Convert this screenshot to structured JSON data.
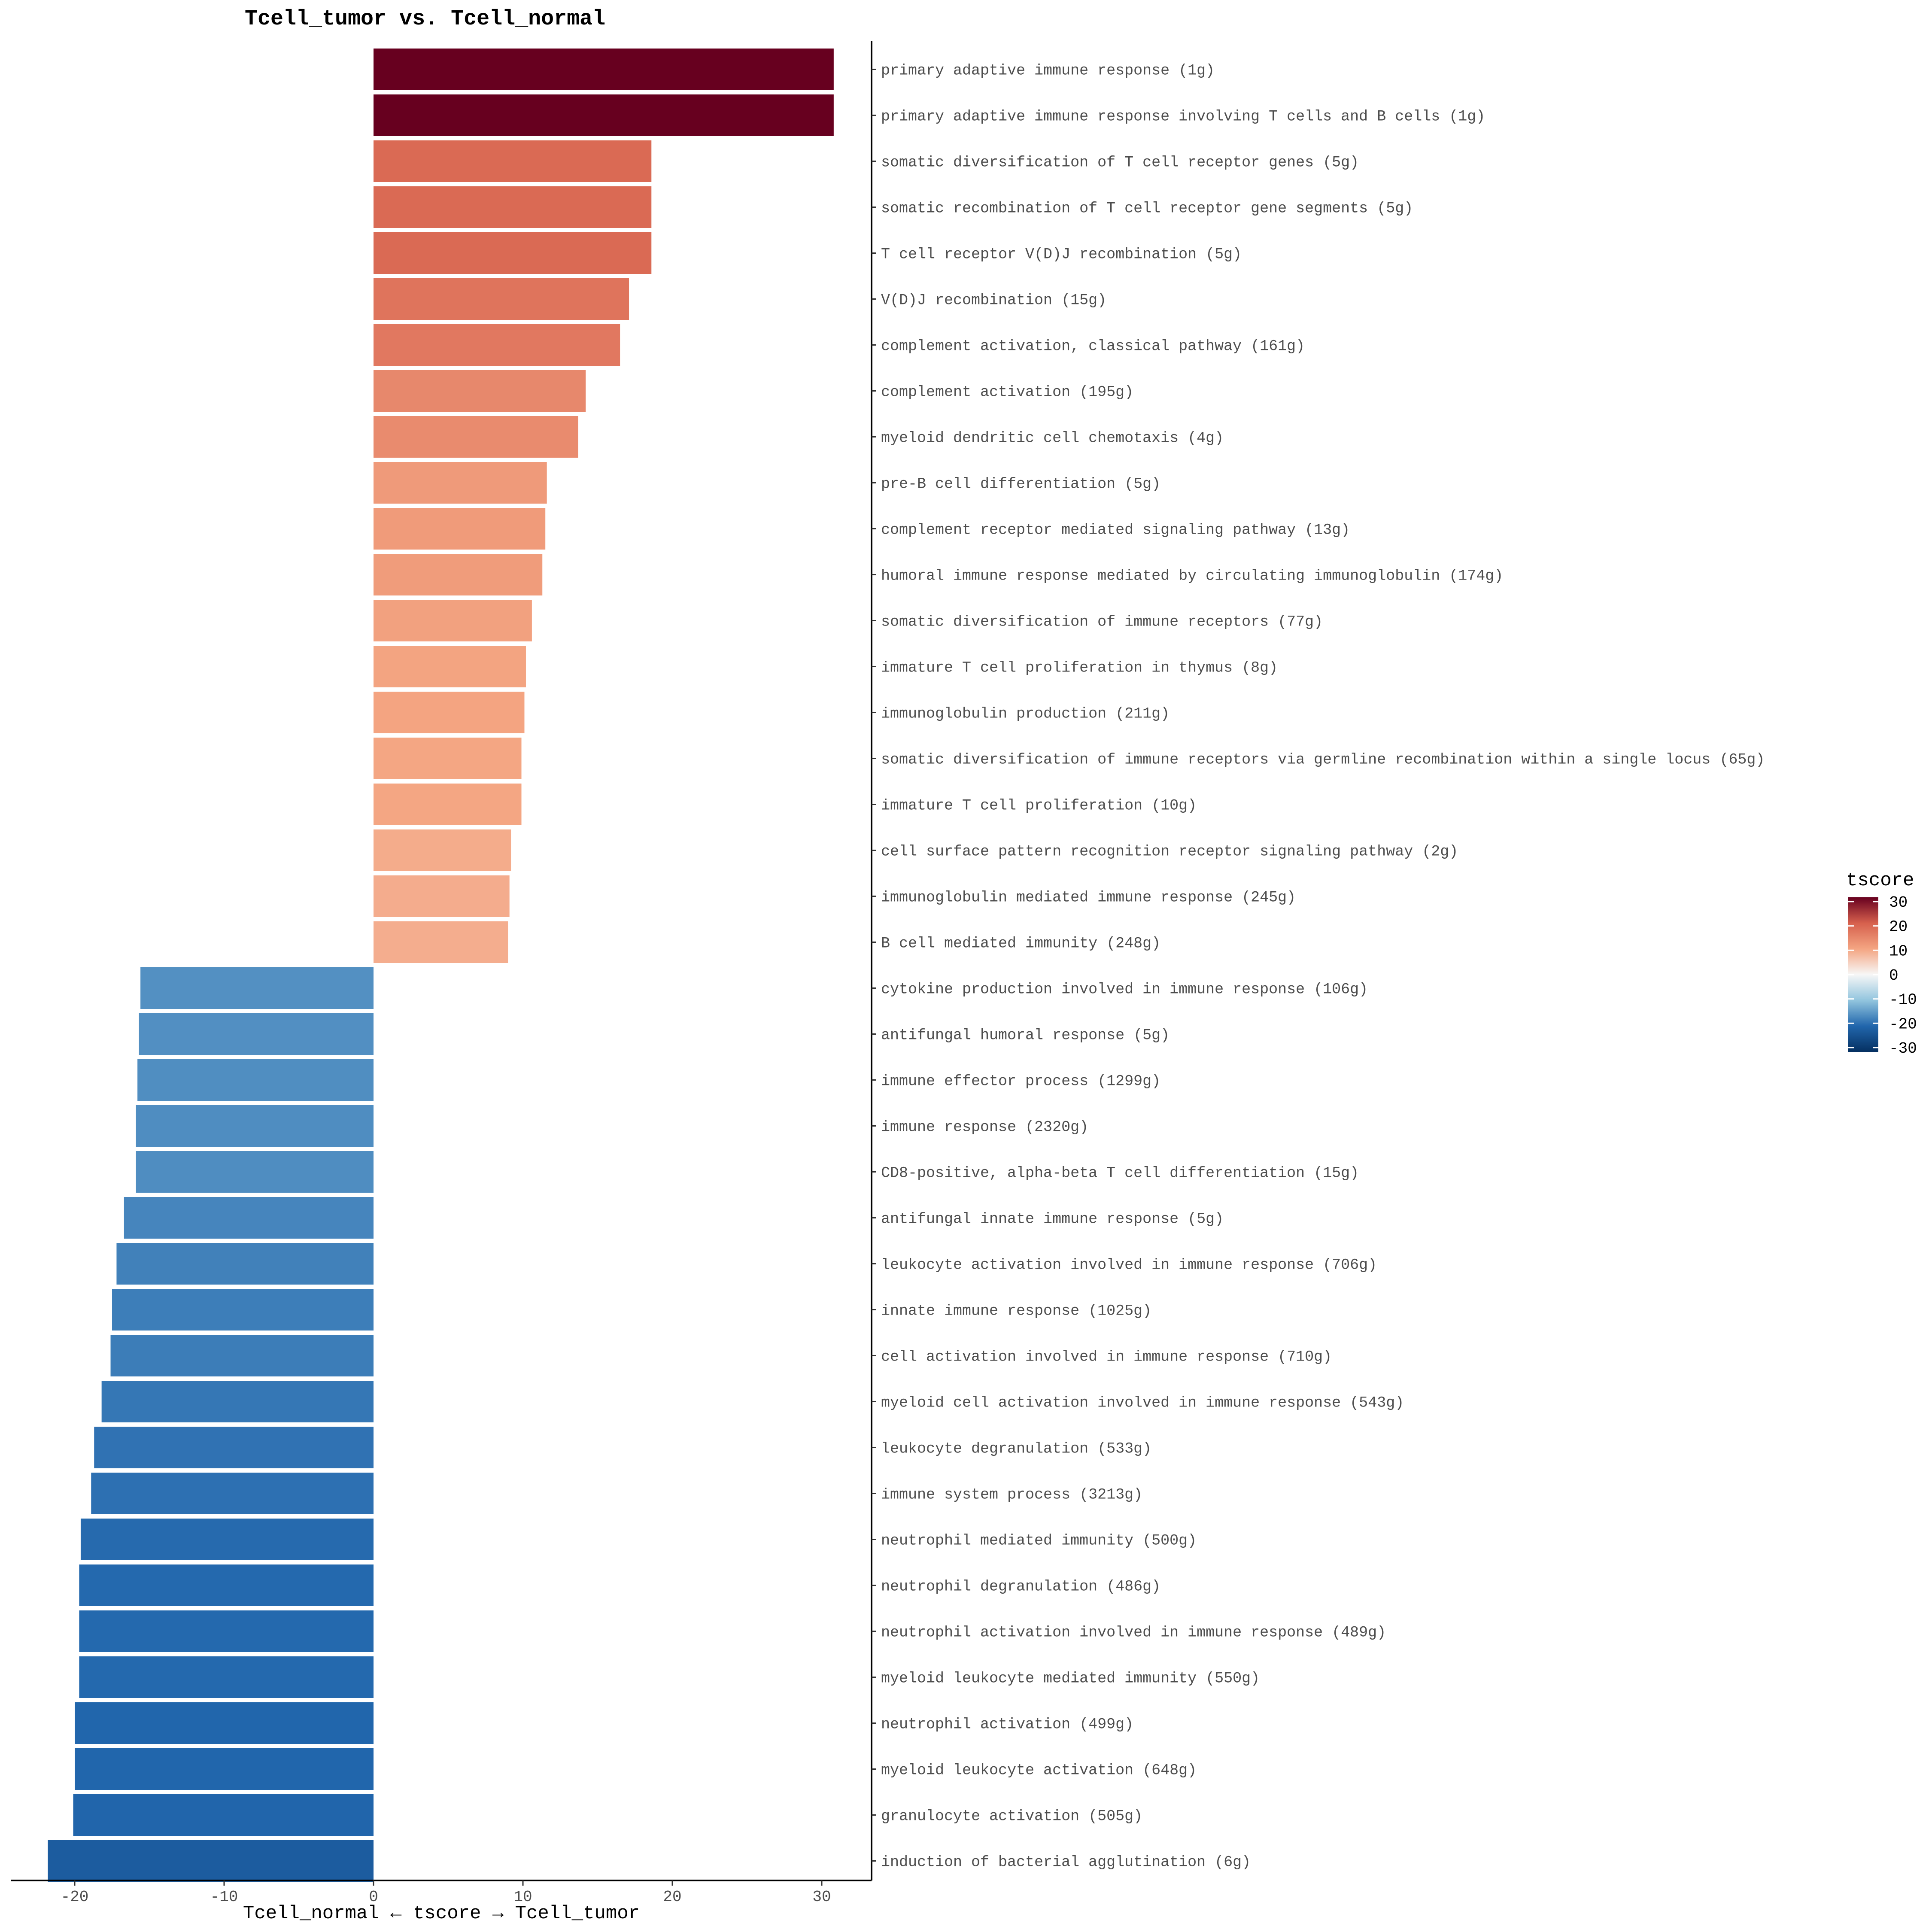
{
  "chart_data": {
    "type": "bar",
    "orientation": "horizontal",
    "title": "Tcell_tumor vs. Tcell_normal",
    "xlabel": "Tcell_normal ← tscore → Tcell_tumor",
    "ylabel": "",
    "xlim": [
      -22.5,
      33.2
    ],
    "x_ticks": [
      -20,
      -10,
      0,
      10,
      20,
      30
    ],
    "x_tick_labels": [
      "-20",
      "-10",
      "0",
      "10",
      "20",
      "30"
    ],
    "grid": false,
    "legend": {
      "title": "tscore",
      "placement": "right",
      "range": [
        -30,
        30
      ],
      "ticks": [
        30,
        20,
        10,
        0,
        -10,
        -20,
        -30
      ],
      "tick_labels": [
        "30",
        "20",
        "10",
        "0",
        "-10",
        "-20",
        "-30"
      ]
    },
    "categories": [
      "primary adaptive immune response (1g)",
      "primary adaptive immune response involving T cells and B cells (1g)",
      "somatic diversification of T cell receptor genes (5g)",
      "somatic recombination of T cell receptor gene segments (5g)",
      "T cell receptor V(D)J recombination (5g)",
      "V(D)J recombination (15g)",
      "complement activation, classical pathway (161g)",
      "complement activation (195g)",
      "myeloid dendritic cell chemotaxis (4g)",
      "pre-B cell differentiation (5g)",
      "complement receptor mediated signaling pathway (13g)",
      "humoral immune response mediated by circulating immunoglobulin (174g)",
      "somatic diversification of immune receptors (77g)",
      "immature T cell proliferation in thymus (8g)",
      "immunoglobulin production (211g)",
      "somatic diversification of immune receptors via germline recombination within a single locus (65g)",
      "immature T cell proliferation (10g)",
      "cell surface pattern recognition receptor signaling pathway (2g)",
      "immunoglobulin mediated immune response (245g)",
      "B cell mediated immunity (248g)",
      "cytokine production involved in immune response (106g)",
      "antifungal humoral response (5g)",
      "immune effector process (1299g)",
      "immune response (2320g)",
      "CD8-positive, alpha-beta T cell differentiation (15g)",
      "antifungal innate immune response (5g)",
      "leukocyte activation involved in immune response (706g)",
      "innate immune response (1025g)",
      "cell activation involved in immune response (710g)",
      "myeloid cell activation involved in immune response (543g)",
      "leukocyte degranulation (533g)",
      "immune system process (3213g)",
      "neutrophil mediated immunity (500g)",
      "neutrophil degranulation (486g)",
      "neutrophil activation involved in immune response (489g)",
      "myeloid leukocyte mediated immunity (550g)",
      "neutrophil activation (499g)",
      "myeloid leukocyte activation (648g)",
      "granulocyte activation (505g)",
      "induction of bacterial agglutination (6g)"
    ],
    "values": [
      30.8,
      30.8,
      18.6,
      18.6,
      18.6,
      17.1,
      16.5,
      14.2,
      13.7,
      11.6,
      11.5,
      11.3,
      10.6,
      10.2,
      10.1,
      9.9,
      9.9,
      9.2,
      9.1,
      9.0,
      -15.6,
      -15.7,
      -15.8,
      -15.9,
      -15.9,
      -16.7,
      -17.2,
      -17.5,
      -17.6,
      -18.2,
      -18.7,
      -18.9,
      -19.6,
      -19.7,
      -19.7,
      -19.7,
      -20.0,
      -20.0,
      -20.1,
      -21.8
    ],
    "color_scale": {
      "name": "RdBu",
      "stops": [
        {
          "value": -30,
          "color": "#053061"
        },
        {
          "value": -20,
          "color": "#2166ac"
        },
        {
          "value": -10,
          "color": "#92c5de"
        },
        {
          "value": 0,
          "color": "#f7f7f7"
        },
        {
          "value": 10,
          "color": "#f4a582"
        },
        {
          "value": 20,
          "color": "#d6604d"
        },
        {
          "value": 30,
          "color": "#67001f"
        }
      ]
    }
  }
}
